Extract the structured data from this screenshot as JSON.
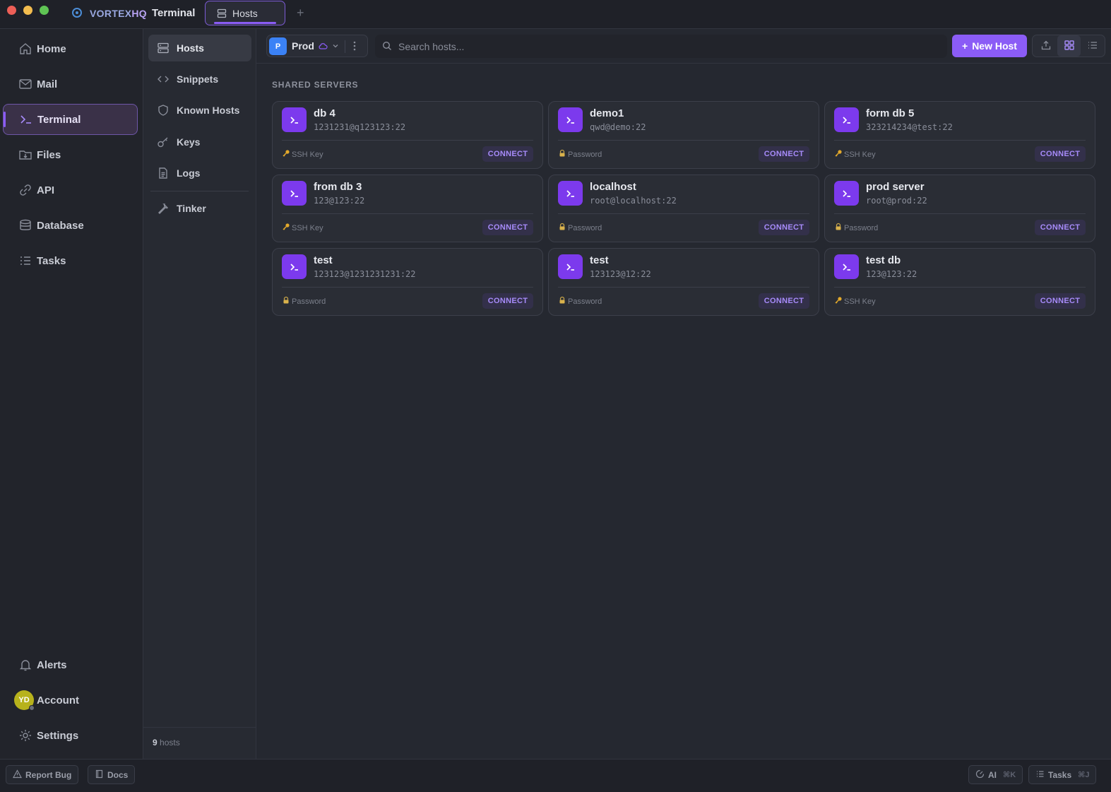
{
  "window": {
    "brand_main": "VORTEX",
    "brand_suffix": "HQ",
    "separator": "-",
    "title": "Terminal",
    "tab_label": "Hosts",
    "tab_add": "+"
  },
  "sidebar": {
    "items": [
      {
        "label": "Home",
        "icon": "home-icon"
      },
      {
        "label": "Mail",
        "icon": "mail-icon"
      },
      {
        "label": "Terminal",
        "icon": "terminal-icon",
        "active": true
      },
      {
        "label": "Files",
        "icon": "files-icon"
      },
      {
        "label": "API",
        "icon": "link-icon"
      },
      {
        "label": "Database",
        "icon": "database-icon"
      },
      {
        "label": "Tasks",
        "icon": "tasks-icon"
      }
    ],
    "bottom": {
      "alerts": "Alerts",
      "account": "Account",
      "avatar_initials": "YD",
      "settings": "Settings"
    }
  },
  "subnav": {
    "items": [
      {
        "label": "Hosts",
        "icon": "server-icon",
        "active": true
      },
      {
        "label": "Snippets",
        "icon": "code-icon"
      },
      {
        "label": "Known Hosts",
        "icon": "shield-icon"
      },
      {
        "label": "Keys",
        "icon": "key-icon"
      },
      {
        "label": "Logs",
        "icon": "file-icon"
      },
      {
        "label": "Tinker",
        "icon": "wrench-icon"
      }
    ],
    "count_number": "9",
    "count_label": "hosts"
  },
  "toolbar": {
    "vault_badge": "P",
    "vault_name": "Prod",
    "search_placeholder": "Search hosts...",
    "new_host_label": "New Host",
    "new_host_plus": "+"
  },
  "main": {
    "section_title": "SHARED SERVERS",
    "connect_label": "CONNECT",
    "hosts": [
      {
        "name": "db 4",
        "address": "1231231@q123123:22",
        "auth": "SSH Key",
        "auth_type": "key"
      },
      {
        "name": "demo1",
        "address": "qwd@demo:22",
        "auth": "Password",
        "auth_type": "password"
      },
      {
        "name": "form db 5",
        "address": "323214234@test:22",
        "auth": "SSH Key",
        "auth_type": "key"
      },
      {
        "name": "from db 3",
        "address": "123@123:22",
        "auth": "SSH Key",
        "auth_type": "key"
      },
      {
        "name": "localhost",
        "address": "root@localhost:22",
        "auth": "Password",
        "auth_type": "password"
      },
      {
        "name": "prod server",
        "address": "root@prod:22",
        "auth": "Password",
        "auth_type": "password"
      },
      {
        "name": "test",
        "address": "123123@1231231231:22",
        "auth": "Password",
        "auth_type": "password"
      },
      {
        "name": "test",
        "address": "123123@12:22",
        "auth": "Password",
        "auth_type": "password"
      },
      {
        "name": "test db",
        "address": "123@123:22",
        "auth": "SSH Key",
        "auth_type": "key"
      }
    ]
  },
  "bottombar": {
    "report_bug": "Report Bug",
    "docs": "Docs",
    "ai": "AI",
    "ai_shortcut": "⌘K",
    "tasks": "Tasks",
    "tasks_shortcut": "⌘J"
  },
  "colors": {
    "accent": "#8b5cf6",
    "host_icon": "#7c3aed",
    "vault_badge": "#3b82f6",
    "avatar": "#b7b21c"
  }
}
